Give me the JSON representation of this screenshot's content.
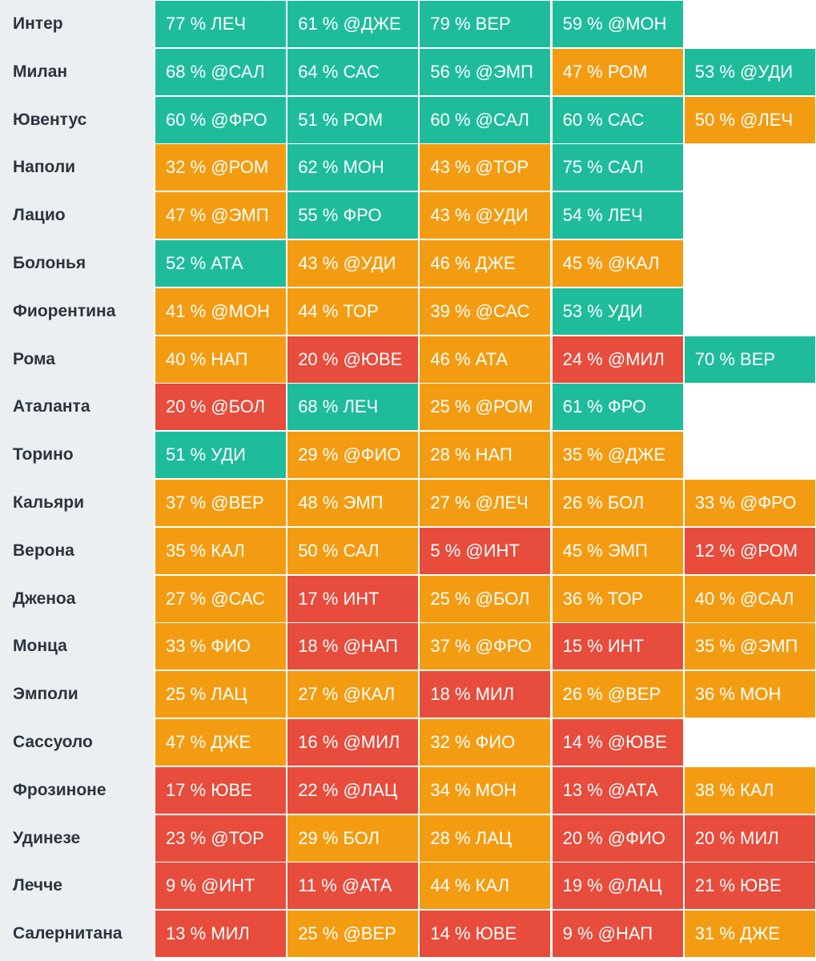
{
  "colors": {
    "green": "#1fbc9c",
    "orange": "#f39c12",
    "red": "#e74c3c",
    "name_column_bg": "#eceff1",
    "team_text": "#2b3440"
  },
  "rows": [
    {
      "team": "Интер",
      "cells": [
        {
          "text": "77 % ЛЕЧ",
          "color": "g"
        },
        {
          "text": "61 % @ДЖЕ",
          "color": "g"
        },
        {
          "text": "79 % ВЕР",
          "color": "g"
        },
        {
          "text": "59 % @МОН",
          "color": "g"
        }
      ]
    },
    {
      "team": "Милан",
      "cells": [
        {
          "text": "68 % @САЛ",
          "color": "g"
        },
        {
          "text": "64 % САС",
          "color": "g"
        },
        {
          "text": "56 % @ЭМП",
          "color": "g"
        },
        {
          "text": "47 % РОМ",
          "color": "o"
        },
        {
          "text": "53 % @УДИ",
          "color": "g"
        }
      ]
    },
    {
      "team": "Ювентус",
      "cells": [
        {
          "text": "60 % @ФРО",
          "color": "g"
        },
        {
          "text": "51 % РОМ",
          "color": "g"
        },
        {
          "text": "60 % @САЛ",
          "color": "g"
        },
        {
          "text": "60 % САС",
          "color": "g"
        },
        {
          "text": "50 % @ЛЕЧ",
          "color": "o"
        }
      ]
    },
    {
      "team": "Наполи",
      "cells": [
        {
          "text": "32 % @РОМ",
          "color": "o"
        },
        {
          "text": "62 % МОН",
          "color": "g"
        },
        {
          "text": "43 % @ТОР",
          "color": "o"
        },
        {
          "text": "75 % САЛ",
          "color": "g"
        }
      ]
    },
    {
      "team": "Лацио",
      "cells": [
        {
          "text": "47 % @ЭМП",
          "color": "o"
        },
        {
          "text": "55 % ФРО",
          "color": "g"
        },
        {
          "text": "43 % @УДИ",
          "color": "o"
        },
        {
          "text": "54 % ЛЕЧ",
          "color": "g"
        }
      ]
    },
    {
      "team": "Болонья",
      "cells": [
        {
          "text": "52 % АТА",
          "color": "g"
        },
        {
          "text": "43 % @УДИ",
          "color": "o"
        },
        {
          "text": "46 % ДЖЕ",
          "color": "o"
        },
        {
          "text": "45 % @КАЛ",
          "color": "o"
        }
      ]
    },
    {
      "team": "Фиорентина",
      "cells": [
        {
          "text": "41 % @МОН",
          "color": "o"
        },
        {
          "text": "44 % ТОР",
          "color": "o"
        },
        {
          "text": "39 % @САС",
          "color": "o"
        },
        {
          "text": "53 % УДИ",
          "color": "g"
        }
      ]
    },
    {
      "team": "Рома",
      "cells": [
        {
          "text": "40 % НАП",
          "color": "o"
        },
        {
          "text": "20 % @ЮВЕ",
          "color": "r"
        },
        {
          "text": "46 % АТА",
          "color": "o"
        },
        {
          "text": "24 % @МИЛ",
          "color": "r"
        },
        {
          "text": "70 % ВЕР",
          "color": "g"
        }
      ]
    },
    {
      "team": "Аталанта",
      "cells": [
        {
          "text": "20 % @БОЛ",
          "color": "r"
        },
        {
          "text": "68 % ЛЕЧ",
          "color": "g"
        },
        {
          "text": "25 % @РОМ",
          "color": "o"
        },
        {
          "text": "61 % ФРО",
          "color": "g"
        }
      ]
    },
    {
      "team": "Торино",
      "cells": [
        {
          "text": "51 % УДИ",
          "color": "g"
        },
        {
          "text": "29 % @ФИО",
          "color": "o"
        },
        {
          "text": "28 % НАП",
          "color": "o"
        },
        {
          "text": "35 % @ДЖЕ",
          "color": "o"
        }
      ]
    },
    {
      "team": "Кальяри",
      "cells": [
        {
          "text": "37 % @ВЕР",
          "color": "o"
        },
        {
          "text": "48 % ЭМП",
          "color": "o"
        },
        {
          "text": "27 % @ЛЕЧ",
          "color": "o"
        },
        {
          "text": "26 % БОЛ",
          "color": "o"
        },
        {
          "text": "33 % @ФРО",
          "color": "o"
        }
      ]
    },
    {
      "team": "Верона",
      "cells": [
        {
          "text": "35 % КАЛ",
          "color": "o"
        },
        {
          "text": "50 % САЛ",
          "color": "o"
        },
        {
          "text": "5 % @ИНТ",
          "color": "r"
        },
        {
          "text": "45 % ЭМП",
          "color": "o"
        },
        {
          "text": "12 % @РОМ",
          "color": "r"
        }
      ]
    },
    {
      "team": "Дженоа",
      "cells": [
        {
          "text": "27 % @САС",
          "color": "o"
        },
        {
          "text": "17 % ИНТ",
          "color": "r"
        },
        {
          "text": "25 % @БОЛ",
          "color": "o"
        },
        {
          "text": "36 % ТОР",
          "color": "o"
        },
        {
          "text": "40 % @САЛ",
          "color": "o"
        }
      ]
    },
    {
      "team": "Монца",
      "cells": [
        {
          "text": "33 % ФИО",
          "color": "o"
        },
        {
          "text": "18 % @НАП",
          "color": "r"
        },
        {
          "text": "37 % @ФРО",
          "color": "o"
        },
        {
          "text": "15 % ИНТ",
          "color": "r"
        },
        {
          "text": "35 % @ЭМП",
          "color": "o"
        }
      ]
    },
    {
      "team": "Эмполи",
      "cells": [
        {
          "text": "25 % ЛАЦ",
          "color": "o"
        },
        {
          "text": "27 % @КАЛ",
          "color": "o"
        },
        {
          "text": "18 % МИЛ",
          "color": "r"
        },
        {
          "text": "26 % @ВЕР",
          "color": "o"
        },
        {
          "text": "36 % МОН",
          "color": "o"
        }
      ]
    },
    {
      "team": "Сассуоло",
      "cells": [
        {
          "text": "47 % ДЖЕ",
          "color": "o"
        },
        {
          "text": "16 % @МИЛ",
          "color": "r"
        },
        {
          "text": "32 % ФИО",
          "color": "o"
        },
        {
          "text": "14 % @ЮВЕ",
          "color": "r"
        }
      ]
    },
    {
      "team": "Фрозиноне",
      "cells": [
        {
          "text": "17 % ЮВЕ",
          "color": "r"
        },
        {
          "text": "22 % @ЛАЦ",
          "color": "r"
        },
        {
          "text": "34 % МОН",
          "color": "o"
        },
        {
          "text": "13 % @АТА",
          "color": "r"
        },
        {
          "text": "38 % КАЛ",
          "color": "o"
        }
      ]
    },
    {
      "team": "Удинезе",
      "cells": [
        {
          "text": "23 % @ТОР",
          "color": "r"
        },
        {
          "text": "29 % БОЛ",
          "color": "o"
        },
        {
          "text": "28 % ЛАЦ",
          "color": "o"
        },
        {
          "text": "20 % @ФИО",
          "color": "r"
        },
        {
          "text": "20 % МИЛ",
          "color": "r"
        }
      ]
    },
    {
      "team": "Лечче",
      "cells": [
        {
          "text": "9 % @ИНТ",
          "color": "r"
        },
        {
          "text": "11 % @АТА",
          "color": "r"
        },
        {
          "text": "44 % КАЛ",
          "color": "o"
        },
        {
          "text": "19 % @ЛАЦ",
          "color": "r"
        },
        {
          "text": "21 % ЮВЕ",
          "color": "r"
        }
      ]
    },
    {
      "team": "Салернитана",
      "cells": [
        {
          "text": "13 % МИЛ",
          "color": "r"
        },
        {
          "text": "25 % @ВЕР",
          "color": "o"
        },
        {
          "text": "14 % ЮВЕ",
          "color": "r"
        },
        {
          "text": "9 % @НАП",
          "color": "r"
        },
        {
          "text": "31 % ДЖЕ",
          "color": "o"
        }
      ]
    }
  ]
}
